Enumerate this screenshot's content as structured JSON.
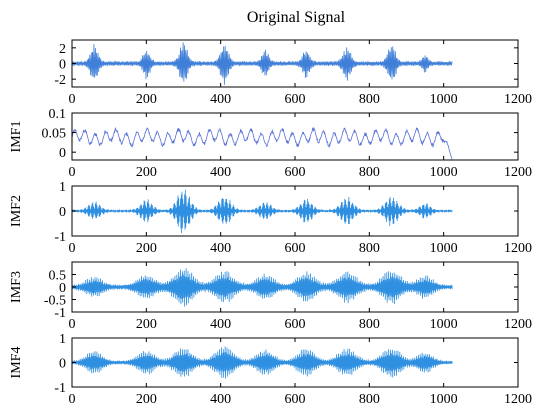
{
  "figure_title": "Original Signal",
  "chart_data": [
    {
      "type": "line",
      "ylabel": "",
      "xlim": [
        0,
        1200
      ],
      "xticks": [
        "0",
        "200",
        "400",
        "600",
        "800",
        "1000",
        "1200"
      ],
      "ylim": [
        -3,
        3
      ],
      "yticks": [
        {
          "v": 2,
          "label": "2"
        },
        {
          "v": 0,
          "label": "0"
        },
        {
          "v": -2,
          "label": "-2"
        }
      ],
      "color": "#3f7fd8",
      "signal": {
        "kind": "bursts",
        "centers": [
          60,
          200,
          300,
          410,
          520,
          630,
          740,
          860,
          950
        ],
        "widths": [
          14,
          12,
          14,
          14,
          12,
          12,
          14,
          14,
          10
        ],
        "amplitudes": [
          2.2,
          1.8,
          2.6,
          2.5,
          1.6,
          1.8,
          2.0,
          2.4,
          1.0
        ],
        "baseline_noise": 0.35,
        "freq": 0.55,
        "n": 1024
      }
    },
    {
      "type": "line",
      "ylabel": "IMF1",
      "xlim": [
        0,
        1200
      ],
      "xticks": [
        "0",
        "200",
        "400",
        "600",
        "800",
        "1000",
        "1200"
      ],
      "ylim": [
        -0.02,
        0.1
      ],
      "yticks": [
        {
          "v": 0.1,
          "label": "0.1"
        },
        {
          "v": 0.05,
          "label": "0.05"
        },
        {
          "v": 0,
          "label": "0"
        }
      ],
      "color": "#5a72d6",
      "signal": {
        "kind": "wavy",
        "mean": 0.038,
        "amplitude": 0.016,
        "freq": 0.25,
        "n": 1024,
        "end_drop": -0.018
      }
    },
    {
      "type": "line",
      "ylabel": "IMF2",
      "xlim": [
        0,
        1200
      ],
      "xticks": [
        "0",
        "200",
        "400",
        "600",
        "800",
        "1000",
        "1200"
      ],
      "ylim": [
        -1,
        1
      ],
      "yticks": [
        {
          "v": 1,
          "label": "1"
        },
        {
          "v": 0,
          "label": "0"
        },
        {
          "v": -1,
          "label": "-1"
        }
      ],
      "color": "#2f8fe0",
      "signal": {
        "kind": "bursts",
        "centers": [
          60,
          200,
          300,
          410,
          520,
          630,
          740,
          860,
          950
        ],
        "widths": [
          22,
          22,
          24,
          24,
          22,
          22,
          24,
          24,
          20
        ],
        "amplitudes": [
          0.35,
          0.45,
          0.9,
          0.6,
          0.35,
          0.5,
          0.55,
          0.6,
          0.3
        ],
        "baseline_noise": 0.05,
        "freq": 0.9,
        "n": 1024
      }
    },
    {
      "type": "line",
      "ylabel": "IMF3",
      "xlim": [
        0,
        1200
      ],
      "xticks": [
        "0",
        "200",
        "400",
        "600",
        "800",
        "1000",
        "1200"
      ],
      "ylim": [
        -1,
        1
      ],
      "yticks": [
        {
          "v": 0.5,
          "label": "0.5"
        },
        {
          "v": 0,
          "label": "0"
        },
        {
          "v": -0.5,
          "label": "-0.5"
        },
        {
          "v": -1,
          "label": "-1"
        }
      ],
      "color": "#2f8fe0",
      "signal": {
        "kind": "bursts",
        "centers": [
          60,
          200,
          300,
          410,
          520,
          630,
          740,
          860,
          950
        ],
        "widths": [
          30,
          32,
          34,
          34,
          32,
          32,
          34,
          34,
          28
        ],
        "amplitudes": [
          0.35,
          0.45,
          0.75,
          0.6,
          0.45,
          0.55,
          0.6,
          0.65,
          0.4
        ],
        "baseline_noise": 0.12,
        "freq": 1.2,
        "n": 1024
      }
    },
    {
      "type": "line",
      "ylabel": "IMF4",
      "xlim": [
        0,
        1200
      ],
      "xticks": [
        "0",
        "200",
        "400",
        "600",
        "800",
        "1000",
        "1200"
      ],
      "ylim": [
        -1,
        1
      ],
      "yticks": [
        {
          "v": 1,
          "label": "1"
        },
        {
          "v": 0,
          "label": "0"
        },
        {
          "v": -1,
          "label": "-1"
        }
      ],
      "color": "#2f8fe0",
      "signal": {
        "kind": "bursts",
        "centers": [
          60,
          200,
          300,
          410,
          520,
          630,
          740,
          860,
          950
        ],
        "widths": [
          30,
          32,
          34,
          34,
          32,
          32,
          34,
          34,
          28
        ],
        "amplitudes": [
          0.45,
          0.45,
          0.6,
          0.65,
          0.5,
          0.55,
          0.55,
          0.6,
          0.4
        ],
        "baseline_noise": 0.08,
        "freq": 1.2,
        "n": 1024
      }
    }
  ]
}
